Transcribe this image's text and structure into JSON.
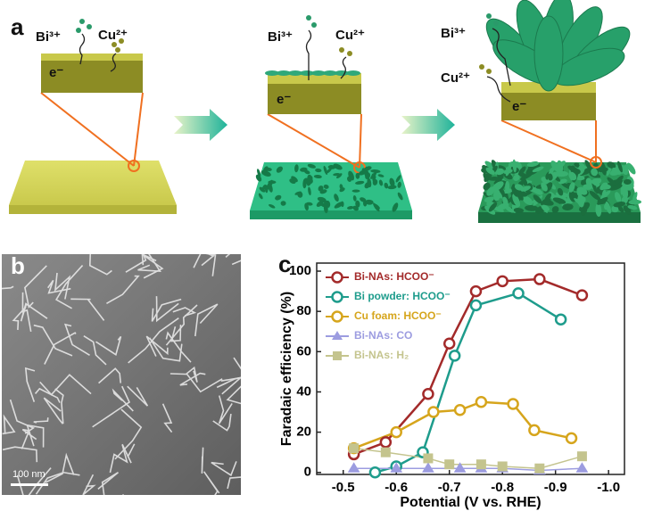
{
  "panel_a": {
    "label": "a",
    "stages": [
      {
        "ions": [
          "Bi³⁺",
          "Cu²⁺"
        ],
        "electron": "e⁻"
      },
      {
        "ions": [
          "Bi³⁺",
          "Cu²⁺"
        ],
        "electron": "e⁻"
      },
      {
        "ions": [
          "Bi³⁺",
          "Cu²⁺"
        ],
        "electron": "e⁻"
      }
    ]
  },
  "panel_b": {
    "label": "b",
    "scale_bar": "100 nm"
  },
  "chart_data": {
    "type": "line",
    "panel_label": "c",
    "x_label": "Potential (V vs. RHE)",
    "y_label": "Faradaic efficiency (%)",
    "xlim": [
      -0.45,
      -1.03
    ],
    "ylim": [
      -1,
      104
    ],
    "xticks": [
      -0.5,
      -0.6,
      -0.7,
      -0.8,
      -0.9,
      {
        "value": -1,
        "label": "-1.0"
      }
    ],
    "yticks": [
      0,
      20,
      40,
      60,
      80,
      100
    ],
    "legend": "upper left",
    "series": [
      {
        "name": "Bi-NAs: HCOO⁻",
        "color": "#a32a2a",
        "marker": "circle",
        "x": [
          -0.52,
          -0.58,
          -0.66,
          -0.7,
          -0.75,
          -0.8,
          -0.87,
          -0.95
        ],
        "values": [
          9,
          15,
          39,
          64,
          90,
          95,
          96,
          88
        ]
      },
      {
        "name": "Bi powder: HCOO⁻",
        "color": "#1e9c8c",
        "marker": "circle",
        "x": [
          -0.56,
          -0.6,
          -0.65,
          -0.71,
          -0.75,
          -0.83,
          -0.91
        ],
        "values": [
          0,
          3,
          10,
          58,
          83,
          89,
          76
        ]
      },
      {
        "name": "Cu foam: HCOO⁻",
        "color": "#d6a51c",
        "marker": "circle",
        "x": [
          -0.52,
          -0.6,
          -0.67,
          -0.72,
          -0.76,
          -0.82,
          -0.86,
          -0.93
        ],
        "values": [
          12,
          20,
          30,
          31,
          35,
          34,
          21,
          17
        ]
      },
      {
        "name": "Bi-NAs: CO",
        "color": "#9c9ce0",
        "marker": "triangle",
        "x": [
          -0.52,
          -0.6,
          -0.66,
          -0.72,
          -0.76,
          -0.8,
          -0.87,
          -0.95
        ],
        "values": [
          2,
          2,
          2,
          2,
          2,
          2,
          1,
          2
        ]
      },
      {
        "name": "Bi-NAs: H₂",
        "color": "#c4c48e",
        "marker": "square",
        "x": [
          -0.52,
          -0.58,
          -0.66,
          -0.7,
          -0.76,
          -0.8,
          -0.87,
          -0.95
        ],
        "values": [
          12,
          10,
          7,
          4,
          4,
          3,
          2,
          8
        ]
      }
    ]
  }
}
